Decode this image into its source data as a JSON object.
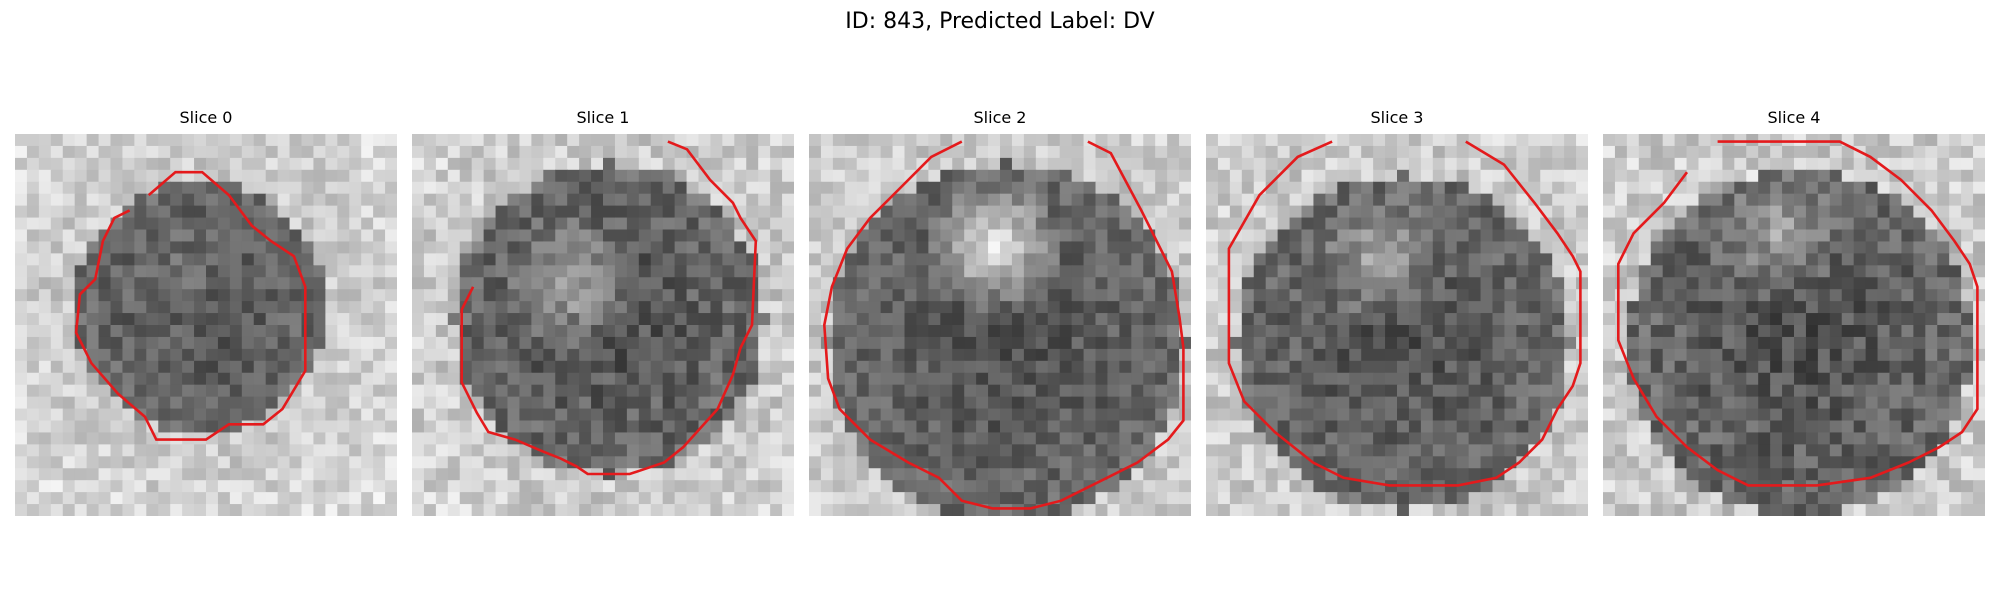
{
  "figure": {
    "title": "ID: 843, Predicted Label: DV"
  },
  "panels": [
    {
      "title": "Slice 0",
      "contour_color": "#e41a1c"
    },
    {
      "title": "Slice 1",
      "contour_color": "#e41a1c"
    },
    {
      "title": "Slice 2",
      "contour_color": "#e41a1c"
    },
    {
      "title": "Slice 3",
      "contour_color": "#e41a1c"
    },
    {
      "title": "Slice 4",
      "contour_color": "#e41a1c"
    }
  ]
}
